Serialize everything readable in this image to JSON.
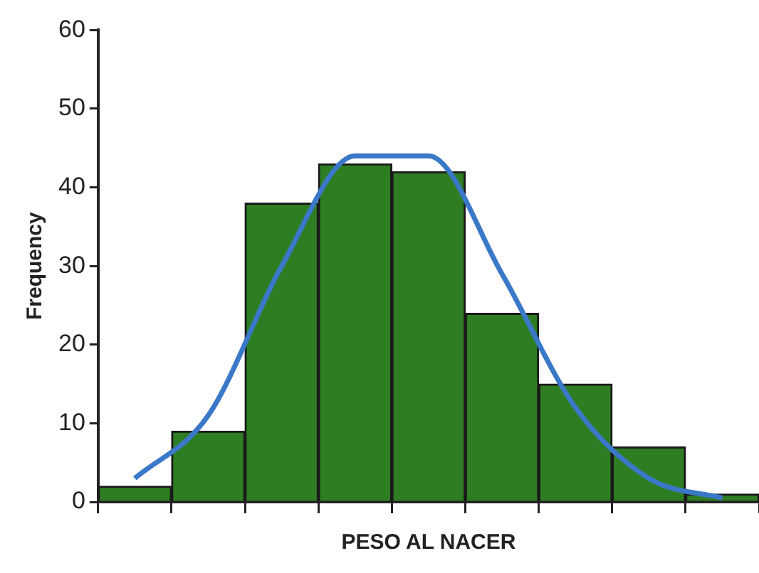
{
  "chart_data": {
    "type": "bar",
    "xlabel": "PESO AL NACER",
    "ylabel": "Frequency",
    "categories": [
      null,
      null,
      null,
      null,
      null,
      null,
      null,
      null,
      null
    ],
    "series": [
      {
        "color": "#2e7d22",
        "values": [
          2,
          9,
          38,
          43,
          42,
          24,
          15,
          7,
          1
        ]
      },
      {
        "type": "line",
        "color": "#3a78c8",
        "values": [
          3,
          11,
          30,
          44,
          44,
          29,
          12,
          3,
          0.5
        ]
      }
    ],
    "ylim": [
      0,
      60
    ],
    "yticks": [
      0,
      10,
      20,
      30,
      40,
      50,
      60
    ],
    "tick_labels": "y",
    "grid": false,
    "legend": false,
    "marker": "none"
  }
}
